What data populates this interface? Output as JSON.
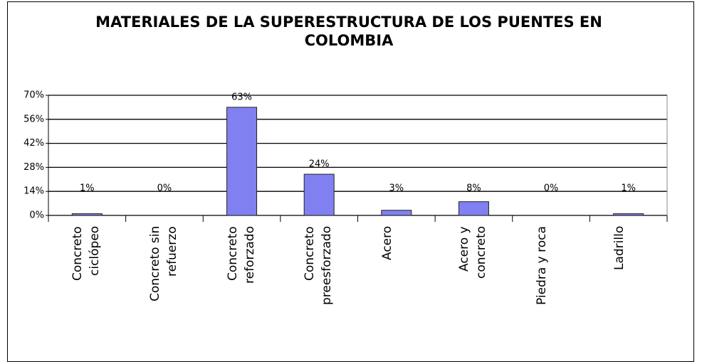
{
  "chart_data": {
    "type": "bar",
    "title": "MATERIALES DE LA SUPERESTRUCTURA DE LOS PUENTES EN COLOMBIA",
    "categories": [
      "Concreto\nciclópeo",
      "Concreto sin\nrefuerzo",
      "Concreto\nreforzado",
      "Concreto\npreesforzado",
      "Acero",
      "Acero y\nconcreto",
      "Piedra y roca",
      "Ladrillo"
    ],
    "values": [
      1,
      0,
      63,
      24,
      3,
      8,
      0,
      1
    ],
    "value_labels": [
      "1%",
      "0%",
      "63%",
      "24%",
      "3%",
      "8%",
      "0%",
      "1%"
    ],
    "color": "#8080f0",
    "ylim": [
      0,
      70
    ],
    "yticks": [
      {
        "value": 0,
        "label": "0%"
      },
      {
        "value": 14,
        "label": "14%"
      },
      {
        "value": 28,
        "label": "28%"
      },
      {
        "value": 42,
        "label": "42%"
      },
      {
        "value": 56,
        "label": "56%"
      },
      {
        "value": 70,
        "label": "70%"
      }
    ],
    "grid": true
  }
}
